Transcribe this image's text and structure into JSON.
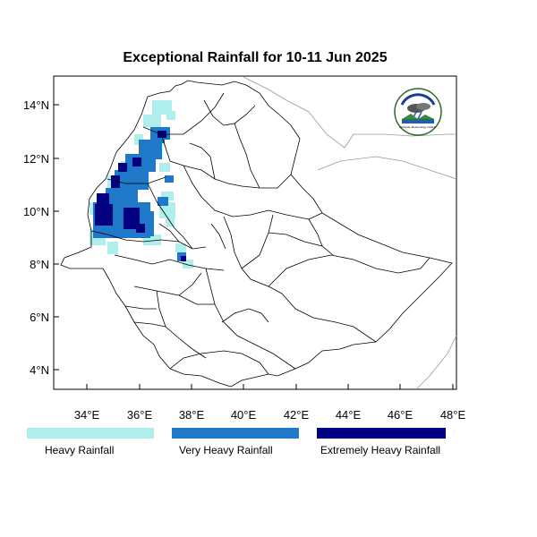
{
  "title": "Exceptional Rainfall for 10-11 Jun 2025",
  "x_ticks": [
    "34°E",
    "36°E",
    "38°E",
    "40°E",
    "42°E",
    "44°E",
    "46°E",
    "48°E"
  ],
  "y_ticks": [
    "14°N",
    "12°N",
    "10°N",
    "8°N",
    "6°N",
    "4°N"
  ],
  "legend": [
    {
      "label": "Heavy Rainfall",
      "color": "#b0eded"
    },
    {
      "label": "Very Heavy Rainfall",
      "color": "#1f78c8"
    },
    {
      "label": "Extremely Heavy Rainfall",
      "color": "#000080"
    }
  ],
  "logo": {
    "text": "Ethiopian Meteorology Institute"
  },
  "colors": {
    "border": "#000000",
    "neighbor_border": "#999999"
  }
}
